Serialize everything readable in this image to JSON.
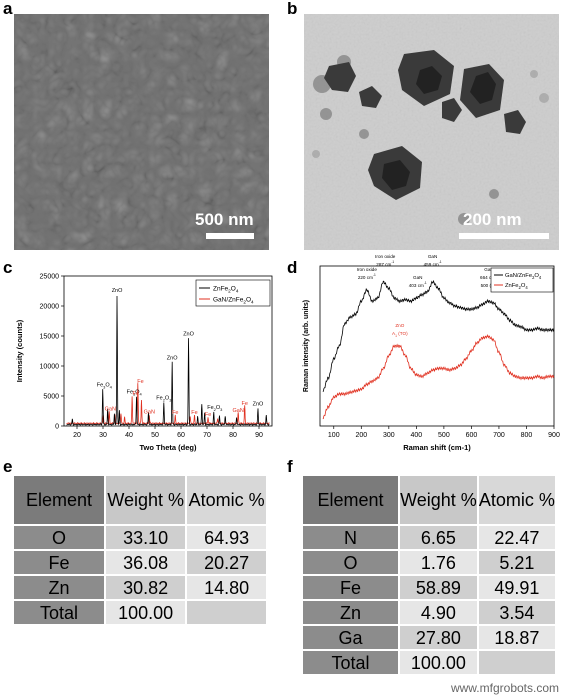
{
  "panels": {
    "a": {
      "label": "a",
      "scale": "500 nm"
    },
    "b": {
      "label": "b",
      "scale": "200 nm"
    },
    "c": {
      "label": "c"
    },
    "d": {
      "label": "d"
    },
    "e": {
      "label": "e"
    },
    "f": {
      "label": "f"
    }
  },
  "chart_data": [
    {
      "type": "line",
      "panel": "c",
      "xlabel": "Two Theta (deg)",
      "ylabel": "Intensity (counts)",
      "xlim": [
        15,
        95
      ],
      "ylim": [
        0,
        25000
      ],
      "xticks": [
        20,
        30,
        40,
        50,
        60,
        70,
        80,
        90
      ],
      "yticks": [
        0,
        5000,
        10000,
        15000,
        20000,
        25000
      ],
      "legend_position": "top-right",
      "series": [
        {
          "name": "ZnFe2O4",
          "color": "#000000",
          "peaks": [
            [
              18.2,
              900
            ],
            [
              29.9,
              5900
            ],
            [
              31.8,
              2600
            ],
            [
              34.4,
              1800
            ],
            [
              35.4,
              21500
            ],
            [
              36.3,
              2300
            ],
            [
              42.9,
              4700
            ],
            [
              47.5,
              2100
            ],
            [
              53.4,
              3700
            ],
            [
              56.6,
              10400
            ],
            [
              62.9,
              14400
            ],
            [
              66.4,
              1300
            ],
            [
              68.0,
              3400
            ],
            [
              69.1,
              1900
            ],
            [
              72.6,
              2000
            ],
            [
              74.8,
              1500
            ],
            [
              77.0,
              1400
            ],
            [
              81.4,
              1200
            ],
            [
              89.6,
              2700
            ],
            [
              92.8,
              1600
            ]
          ]
        },
        {
          "name": "GaN/ZnFe2O4",
          "color": "#e03020",
          "peaks": [
            [
              30.1,
              1300
            ],
            [
              32.4,
              1900
            ],
            [
              34.6,
              1500
            ],
            [
              36.9,
              1600
            ],
            [
              38.3,
              1000
            ],
            [
              41.2,
              4500
            ],
            [
              43.4,
              6700
            ],
            [
              44.8,
              3900
            ],
            [
              47.8,
              1300
            ],
            [
              57.8,
              1300
            ],
            [
              63.5,
              1200
            ],
            [
              65.2,
              1300
            ],
            [
              70.4,
              1000
            ],
            [
              74.1,
              900
            ],
            [
              82.0,
              1800
            ],
            [
              84.5,
              2900
            ]
          ]
        }
      ],
      "annotations": [
        {
          "text": "ZnO",
          "x": 35.4,
          "y": 22300,
          "color": "#000000"
        },
        {
          "text": "ZnO",
          "x": 62.9,
          "y": 15100,
          "color": "#000000"
        },
        {
          "text": "ZnO",
          "x": 56.6,
          "y": 11100,
          "color": "#000000"
        },
        {
          "text": "ZnO",
          "x": 89.6,
          "y": 3400,
          "color": "#000000"
        },
        {
          "text": "Fe3O4",
          "x": 30.5,
          "y": 6600,
          "color": "#000000"
        },
        {
          "text": "Fe3O4",
          "x": 42.0,
          "y": 5400,
          "color": "#000000"
        },
        {
          "text": "Fe2O3",
          "x": 53.4,
          "y": 4400,
          "color": "#000000"
        },
        {
          "text": "Fe2O3",
          "x": 73.0,
          "y": 2800,
          "color": "#000000"
        },
        {
          "text": "Fe",
          "x": 44.4,
          "y": 7200,
          "color": "#e03020"
        },
        {
          "text": "Fe",
          "x": 42.6,
          "y": 5200,
          "color": "#e03020"
        },
        {
          "text": "GaN",
          "x": 47.8,
          "y": 2100,
          "color": "#e03020"
        },
        {
          "text": "GaN",
          "x": 32.8,
          "y": 2600,
          "color": "#e03020"
        },
        {
          "text": "Fe",
          "x": 57.8,
          "y": 2000,
          "color": "#e03020"
        },
        {
          "text": "Fe",
          "x": 65.2,
          "y": 2000,
          "color": "#e03020"
        },
        {
          "text": "Fe",
          "x": 70.4,
          "y": 1700,
          "color": "#e03020"
        },
        {
          "text": "Fe",
          "x": 84.5,
          "y": 3500,
          "color": "#e03020"
        },
        {
          "text": "GaN",
          "x": 82.0,
          "y": 2300,
          "color": "#e03020"
        }
      ]
    },
    {
      "type": "line",
      "panel": "d",
      "xlabel": "Raman shift (cm-1)",
      "ylabel": "Raman intensity (arb. units)",
      "xlim": [
        50,
        900
      ],
      "xticks": [
        100,
        200,
        300,
        400,
        500,
        600,
        700,
        800,
        900
      ],
      "legend_position": "top-right",
      "series": [
        {
          "name": "GaN/ZnFe2O4",
          "color": "#000000",
          "x": [
            60,
            80,
            100,
            120,
            140,
            160,
            180,
            200,
            220,
            240,
            260,
            280,
            300,
            320,
            340,
            360,
            380,
            400,
            420,
            440,
            460,
            480,
            500,
            520,
            540,
            560,
            580,
            600,
            620,
            640,
            660,
            680,
            700,
            720,
            740,
            760,
            780,
            800,
            820,
            840,
            860,
            880,
            900
          ],
          "y": [
            0.22,
            0.3,
            0.42,
            0.5,
            0.64,
            0.68,
            0.7,
            0.78,
            0.85,
            0.78,
            0.8,
            0.9,
            0.86,
            0.8,
            0.78,
            0.79,
            0.78,
            0.8,
            0.82,
            0.84,
            0.9,
            0.86,
            0.8,
            0.77,
            0.75,
            0.74,
            0.73,
            0.73,
            0.74,
            0.76,
            0.78,
            0.77,
            0.73,
            0.7,
            0.66,
            0.63,
            0.62,
            0.6,
            0.6,
            0.61,
            0.6,
            0.6,
            0.6
          ]
        },
        {
          "name": "ZnFe2O4",
          "color": "#e03020",
          "x": [
            60,
            80,
            100,
            120,
            140,
            160,
            180,
            200,
            220,
            240,
            260,
            280,
            300,
            320,
            340,
            360,
            380,
            400,
            420,
            440,
            460,
            480,
            500,
            520,
            540,
            560,
            580,
            600,
            620,
            640,
            660,
            680,
            700,
            720,
            740,
            760,
            780,
            800,
            820,
            840,
            860,
            880,
            900
          ],
          "y": [
            0.05,
            0.12,
            0.18,
            0.2,
            0.2,
            0.21,
            0.22,
            0.23,
            0.26,
            0.28,
            0.3,
            0.36,
            0.44,
            0.5,
            0.5,
            0.44,
            0.36,
            0.32,
            0.31,
            0.33,
            0.35,
            0.36,
            0.36,
            0.35,
            0.36,
            0.38,
            0.42,
            0.47,
            0.52,
            0.55,
            0.56,
            0.54,
            0.46,
            0.38,
            0.33,
            0.31,
            0.3,
            0.3,
            0.3,
            0.31,
            0.3,
            0.31,
            0.31
          ]
        }
      ],
      "annotations": [
        {
          "text": "Iron oxide",
          "x": 220,
          "y": 0.97,
          "color": "#000000"
        },
        {
          "text": "220 cm-1",
          "x": 220,
          "y": 0.92,
          "color": "#000000"
        },
        {
          "text": "Iron oxide",
          "x": 287,
          "y": 1.05,
          "color": "#000000"
        },
        {
          "text": "287 cm-1",
          "x": 287,
          "y": 1.0,
          "color": "#000000"
        },
        {
          "text": "GaN",
          "x": 405,
          "y": 0.92,
          "color": "#000000"
        },
        {
          "text": "403 cm-1",
          "x": 405,
          "y": 0.87,
          "color": "#000000"
        },
        {
          "text": "GaN",
          "x": 459,
          "y": 1.05,
          "color": "#000000"
        },
        {
          "text": "459 cm-1",
          "x": 459,
          "y": 1.0,
          "color": "#000000"
        },
        {
          "text": "GaN",
          "x": 664,
          "y": 0.97,
          "color": "#000000"
        },
        {
          "text": "664 cm-1",
          "x": 664,
          "y": 0.92,
          "color": "#000000"
        },
        {
          "text": "500 (A1)",
          "x": 664,
          "y": 0.87,
          "color": "#000000"
        },
        {
          "text": "ZnO",
          "x": 340,
          "y": 0.62,
          "color": "#e03020"
        },
        {
          "text": "A1 (TO)",
          "x": 340,
          "y": 0.57,
          "color": "#e03020"
        }
      ]
    }
  ],
  "tables": {
    "e": {
      "headers": [
        "Element",
        "Weight %",
        "Atomic %"
      ],
      "rows": [
        [
          "O",
          "33.10",
          "64.93"
        ],
        [
          "Fe",
          "36.08",
          "20.27"
        ],
        [
          "Zn",
          "30.82",
          "14.80"
        ],
        [
          "Total",
          "100.00",
          ""
        ]
      ]
    },
    "f": {
      "headers": [
        "Element",
        "Weight %",
        "Atomic %"
      ],
      "rows": [
        [
          "N",
          "6.65",
          "22.47"
        ],
        [
          "O",
          "1.76",
          "5.21"
        ],
        [
          "Fe",
          "58.89",
          "49.91"
        ],
        [
          "Zn",
          "4.90",
          "3.54"
        ],
        [
          "Ga",
          "27.80",
          "18.87"
        ],
        [
          "Total",
          "100.00",
          ""
        ]
      ]
    }
  },
  "watermark": "www.mfgrobots.com"
}
